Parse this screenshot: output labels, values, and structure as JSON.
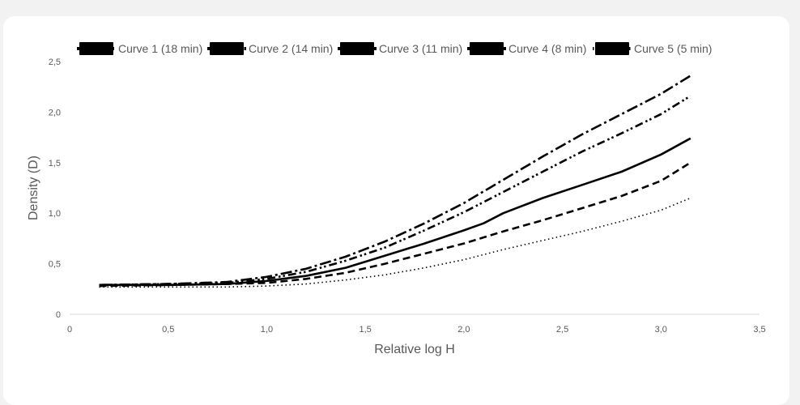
{
  "chart_data": {
    "type": "line",
    "xlabel": "Relative log H",
    "ylabel": "Density (D)",
    "xlim": [
      0,
      3.5
    ],
    "ylim": [
      0,
      2.5
    ],
    "x_ticks": [
      "0",
      "0,5",
      "1,0",
      "1,5",
      "2,0",
      "2,5",
      "3,0",
      "3,5"
    ],
    "y_ticks": [
      "0",
      "0,5",
      "1,0",
      "1,5",
      "2,0",
      "2,5"
    ],
    "grid": false,
    "legend_position": "top",
    "line_color": "#000000",
    "series": [
      {
        "name": "Curve 1 (18 min)",
        "style": "dash-dot",
        "x": [
          0.15,
          0.5,
          0.8,
          1.0,
          1.2,
          1.4,
          1.6,
          1.8,
          2.0,
          2.2,
          2.4,
          2.6,
          2.8,
          3.0,
          3.15
        ],
        "y": [
          0.29,
          0.3,
          0.32,
          0.37,
          0.45,
          0.57,
          0.72,
          0.9,
          1.1,
          1.33,
          1.56,
          1.78,
          1.98,
          2.18,
          2.36
        ]
      },
      {
        "name": "Curve 2 (14 min)",
        "style": "dash-dot-dot",
        "x": [
          0.15,
          0.5,
          0.8,
          1.0,
          1.2,
          1.4,
          1.6,
          1.8,
          2.0,
          2.2,
          2.4,
          2.6,
          2.8,
          3.0,
          3.15
        ],
        "y": [
          0.29,
          0.3,
          0.31,
          0.35,
          0.42,
          0.53,
          0.66,
          0.83,
          1.01,
          1.21,
          1.41,
          1.61,
          1.79,
          1.98,
          2.16
        ]
      },
      {
        "name": "Curve 3 (11 min)",
        "style": "solid",
        "x": [
          0.15,
          0.5,
          0.8,
          1.0,
          1.2,
          1.4,
          1.6,
          1.8,
          2.0,
          2.1,
          2.2,
          2.4,
          2.6,
          2.8,
          3.0,
          3.15
        ],
        "y": [
          0.29,
          0.29,
          0.3,
          0.33,
          0.38,
          0.46,
          0.58,
          0.7,
          0.83,
          0.9,
          1.0,
          1.15,
          1.28,
          1.41,
          1.58,
          1.74
        ]
      },
      {
        "name": "Curve 4 (8 min)",
        "style": "dashed",
        "x": [
          0.15,
          0.5,
          0.8,
          1.0,
          1.2,
          1.4,
          1.6,
          1.8,
          2.0,
          2.2,
          2.4,
          2.6,
          2.8,
          3.0,
          3.15
        ],
        "y": [
          0.28,
          0.29,
          0.3,
          0.31,
          0.35,
          0.41,
          0.5,
          0.6,
          0.7,
          0.82,
          0.93,
          1.05,
          1.17,
          1.32,
          1.5
        ]
      },
      {
        "name": "Curve 5 (5 min)",
        "style": "dotted",
        "x": [
          0.15,
          0.5,
          0.8,
          1.0,
          1.2,
          1.4,
          1.6,
          1.8,
          2.0,
          2.2,
          2.4,
          2.6,
          2.8,
          3.0,
          3.15
        ],
        "y": [
          0.27,
          0.27,
          0.27,
          0.28,
          0.3,
          0.34,
          0.39,
          0.46,
          0.54,
          0.64,
          0.73,
          0.82,
          0.92,
          1.03,
          1.15
        ]
      }
    ]
  }
}
